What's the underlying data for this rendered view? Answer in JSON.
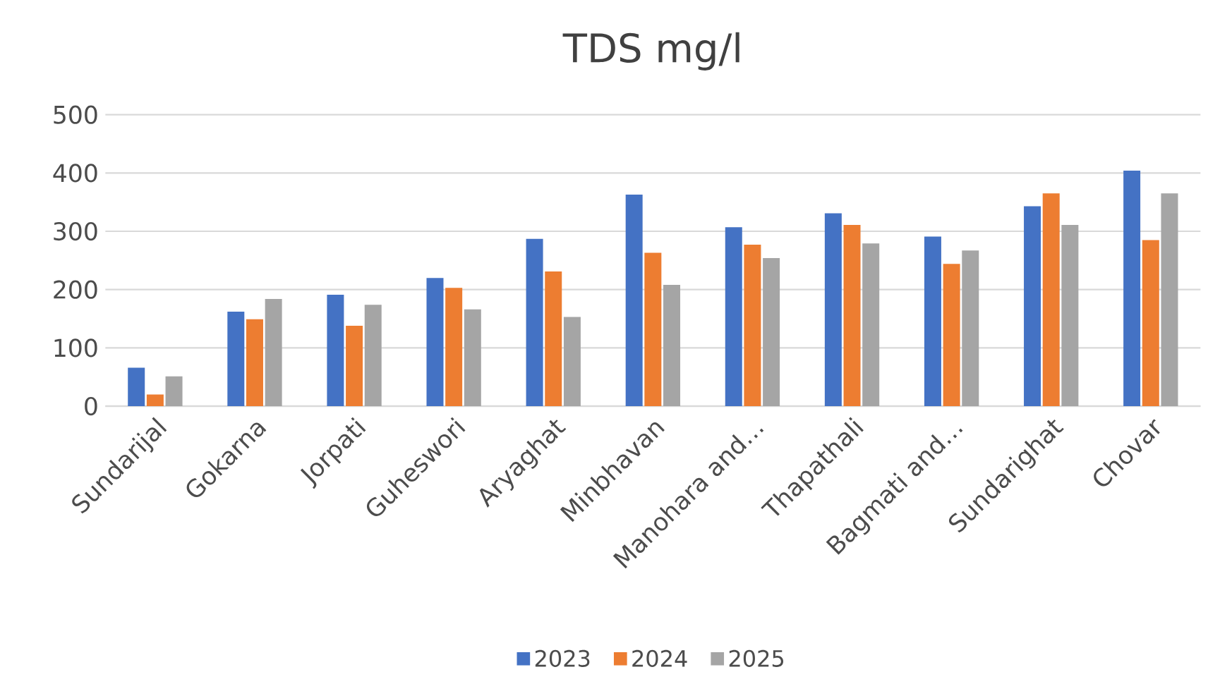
{
  "chart_data": {
    "type": "bar",
    "title": "TDS mg/l",
    "categories": [
      "Sundarijal",
      "Gokarna",
      "Jorpati",
      "Guheswori",
      "Aryaghat",
      "Minbhavan",
      "Manohara and…",
      "Thapathali",
      "Bagmati and…",
      "Sundarighat",
      "Chovar"
    ],
    "series": [
      {
        "name": "2023",
        "color": "#4472c4",
        "values": [
          66,
          162,
          191,
          220,
          287,
          363,
          307,
          331,
          291,
          343,
          404
        ]
      },
      {
        "name": "2024",
        "color": "#ed7d31",
        "values": [
          20,
          149,
          138,
          203,
          231,
          263,
          277,
          311,
          244,
          365,
          285
        ]
      },
      {
        "name": "2025",
        "color": "#a5a5a5",
        "values": [
          51,
          184,
          174,
          166,
          153,
          208,
          254,
          279,
          267,
          311,
          365
        ]
      }
    ],
    "ylim": [
      0,
      500
    ],
    "yticks": [
      0,
      100,
      200,
      300,
      400,
      500
    ],
    "grid": "y",
    "legend": "bottom"
  }
}
